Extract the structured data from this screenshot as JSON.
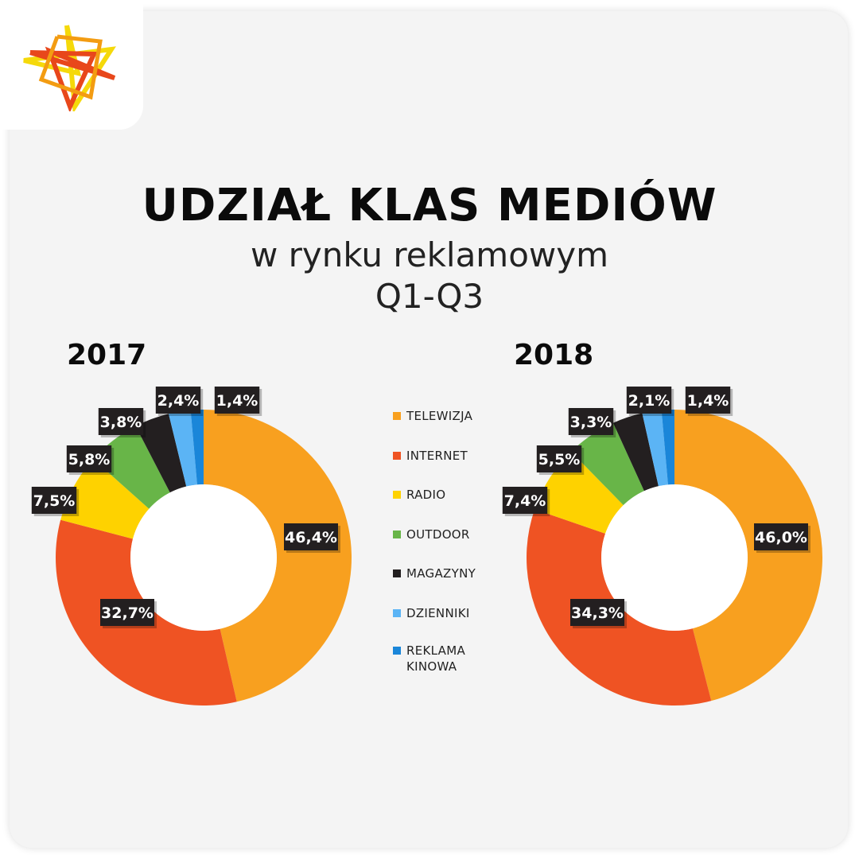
{
  "header": {
    "title": "UDZIAŁ KLAS MEDIÓW",
    "subtitle_line1": "w rynku reklamowym",
    "subtitle_line2": "Q1-Q3"
  },
  "logo": {
    "icon": "star-burst-logo-icon",
    "colors": [
      "#f5d90a",
      "#e8471b",
      "#f39c12"
    ]
  },
  "legend": [
    {
      "label": "TELEWIZJA",
      "color": "#f8a01f"
    },
    {
      "label": "INTERNET",
      "color": "#ef5323"
    },
    {
      "label": "RADIO",
      "color": "#fed200"
    },
    {
      "label": "OUTDOOR",
      "color": "#68b548"
    },
    {
      "label": "MAGAZYNY",
      "color": "#231f20"
    },
    {
      "label": "DZIENNIKI",
      "color": "#5bb4f5"
    },
    {
      "label": "REKLAMA KINOWA",
      "color": "#1a86d9"
    }
  ],
  "chart_data": [
    {
      "type": "pie",
      "title": "2017",
      "categories": [
        "TELEWIZJA",
        "INTERNET",
        "RADIO",
        "OUTDOOR",
        "MAGAZYNY",
        "DZIENNIKI",
        "REKLAMA KINOWA"
      ],
      "values": [
        46.4,
        32.7,
        7.5,
        5.8,
        3.8,
        2.4,
        1.4
      ],
      "labels": [
        "46,4%",
        "32,7%",
        "7,5%",
        "5,8%",
        "3,8%",
        "2,4%",
        "1,4%"
      ]
    },
    {
      "type": "pie",
      "title": "2018",
      "categories": [
        "TELEWIZJA",
        "INTERNET",
        "RADIO",
        "OUTDOOR",
        "MAGAZYNY",
        "DZIENNIKI",
        "REKLAMA KINOWA"
      ],
      "values": [
        46.0,
        34.3,
        7.4,
        5.5,
        3.3,
        2.1,
        1.4
      ],
      "labels": [
        "46,0%",
        "34,3%",
        "7,4%",
        "5,5%",
        "3,3%",
        "2,1%",
        "1,4%"
      ]
    }
  ]
}
